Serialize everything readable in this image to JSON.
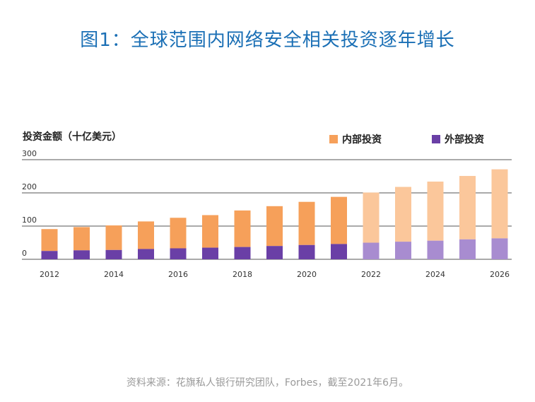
{
  "title": "图1：全球范围内网络安全相关投资逐年增长",
  "source": "资料来源：花旗私人银行研究团队，Forbes，截至2021年6月。",
  "colors": {
    "title": "#1a6fb5",
    "inner": "#f6a05a",
    "outer": "#6a3fa6",
    "inner_projected": "#fbc79b",
    "outer_projected": "#a88cd0",
    "axis": "#555555"
  },
  "chart_data": {
    "type": "bar",
    "stacked": true,
    "ylabel": "投资金额（十亿美元）",
    "ylim": [
      0,
      300
    ],
    "yticks": [
      "0",
      "100",
      "200",
      "300"
    ],
    "categories": [
      "2012",
      "2013",
      "2014",
      "2015",
      "2016",
      "2017",
      "2018",
      "2019",
      "2020",
      "2021",
      "2022",
      "2023",
      "2024",
      "2025",
      "2026"
    ],
    "xtick_labels": [
      "2012",
      "",
      "2014",
      "",
      "2016",
      "",
      "2018",
      "",
      "2020",
      "",
      "2022",
      "",
      "2024",
      "",
      "2026"
    ],
    "projected_from": "2022",
    "series": [
      {
        "name": "外部投资",
        "key": "outer",
        "values": [
          25,
          27,
          28,
          31,
          33,
          35,
          37,
          40,
          43,
          46,
          50,
          53,
          56,
          60,
          63
        ]
      },
      {
        "name": "内部投资",
        "key": "inner",
        "values": [
          66,
          70,
          74,
          83,
          92,
          98,
          110,
          120,
          130,
          142,
          151,
          165,
          178,
          191,
          208
        ]
      }
    ],
    "grid": true,
    "legend": "top-right"
  }
}
